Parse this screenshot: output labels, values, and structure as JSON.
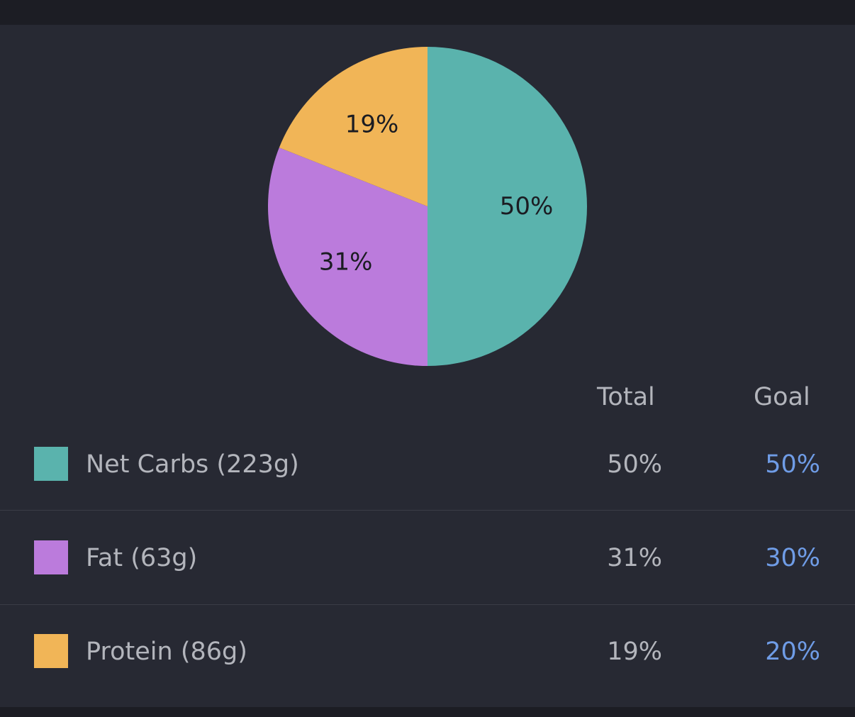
{
  "colors": {
    "net_carbs": "#5ab3ad",
    "fat": "#bb7bdc",
    "protein": "#f1b557",
    "goal_text": "#6f9ce6",
    "background": "#272933"
  },
  "table": {
    "header_total": "Total",
    "header_goal": "Goal",
    "rows": [
      {
        "label": "Net Carbs (223g)",
        "total": "50%",
        "goal": "50%",
        "color": "#5ab3ad"
      },
      {
        "label": "Fat (63g)",
        "total": "31%",
        "goal": "30%",
        "color": "#bb7bdc"
      },
      {
        "label": "Protein (86g)",
        "total": "19%",
        "goal": "20%",
        "color": "#f1b557"
      }
    ]
  },
  "chart_data": {
    "type": "pie",
    "categories": [
      "Net Carbs",
      "Fat",
      "Protein"
    ],
    "values": [
      50,
      31,
      19
    ],
    "labels": [
      "50%",
      "31%",
      "19%"
    ],
    "colors": [
      "#5ab3ad",
      "#bb7bdc",
      "#f1b557"
    ]
  }
}
